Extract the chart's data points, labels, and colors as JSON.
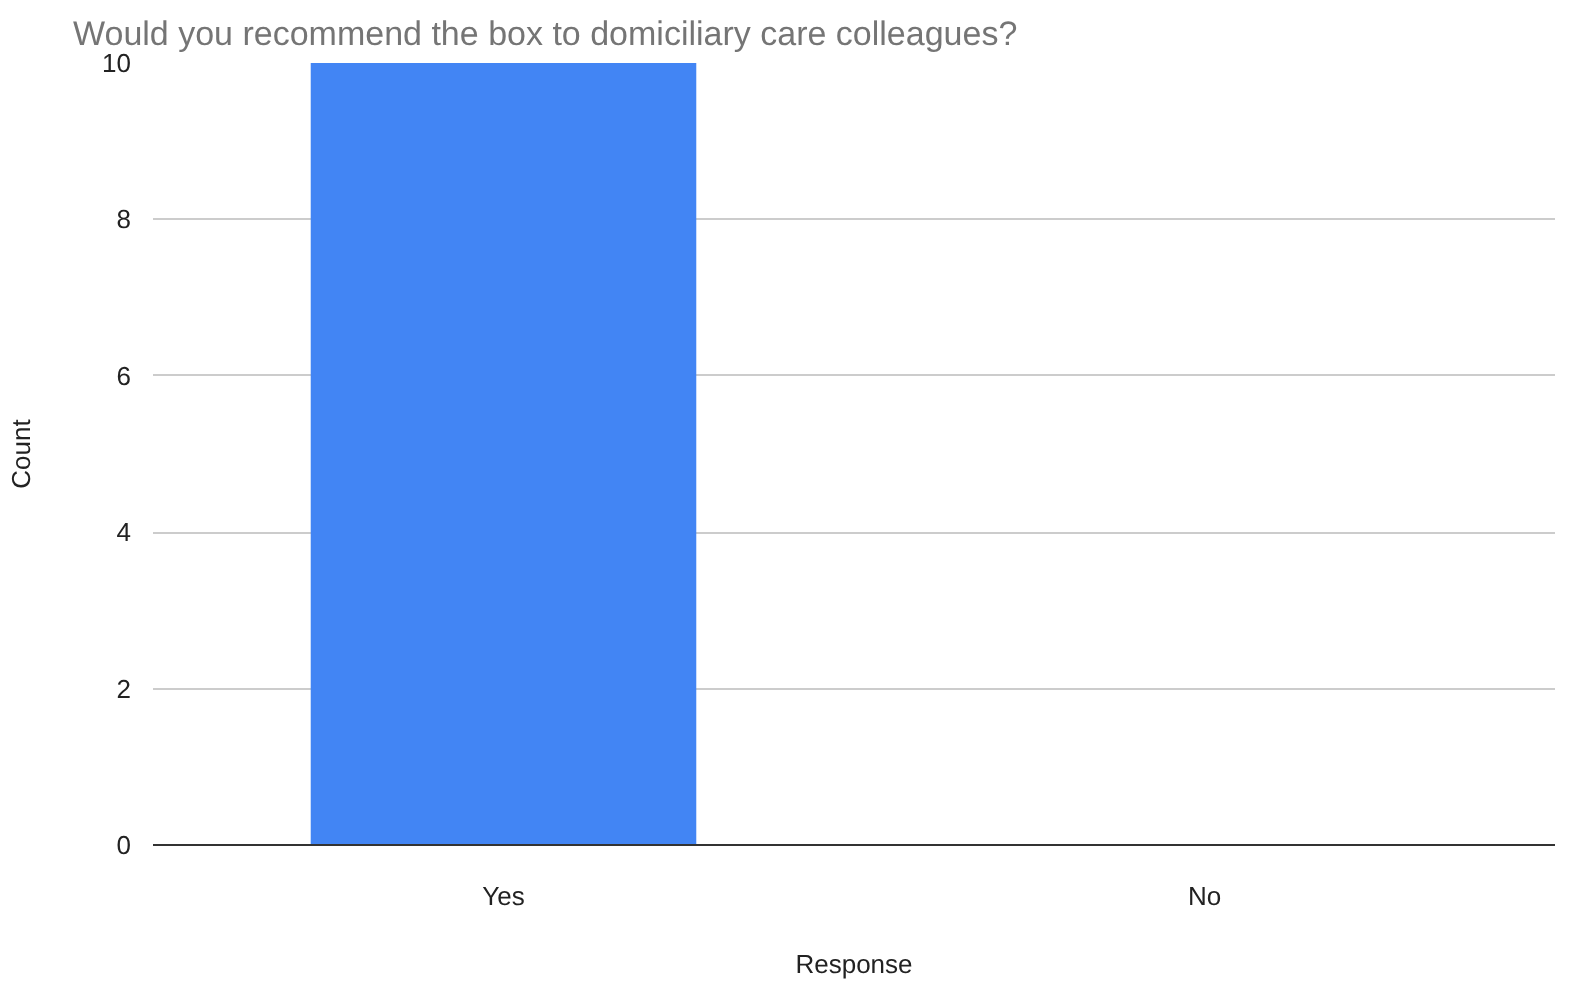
{
  "chart_data": {
    "type": "bar",
    "title": "Would you recommend the box to domiciliary care colleagues?",
    "xlabel": "Response",
    "ylabel": "Count",
    "categories": [
      "Yes",
      "No"
    ],
    "values": [
      10,
      0
    ],
    "color": "#4285f4",
    "ylim": [
      0,
      10
    ],
    "yticks": [
      0,
      2,
      4,
      6,
      8,
      10
    ],
    "grid": "y"
  }
}
